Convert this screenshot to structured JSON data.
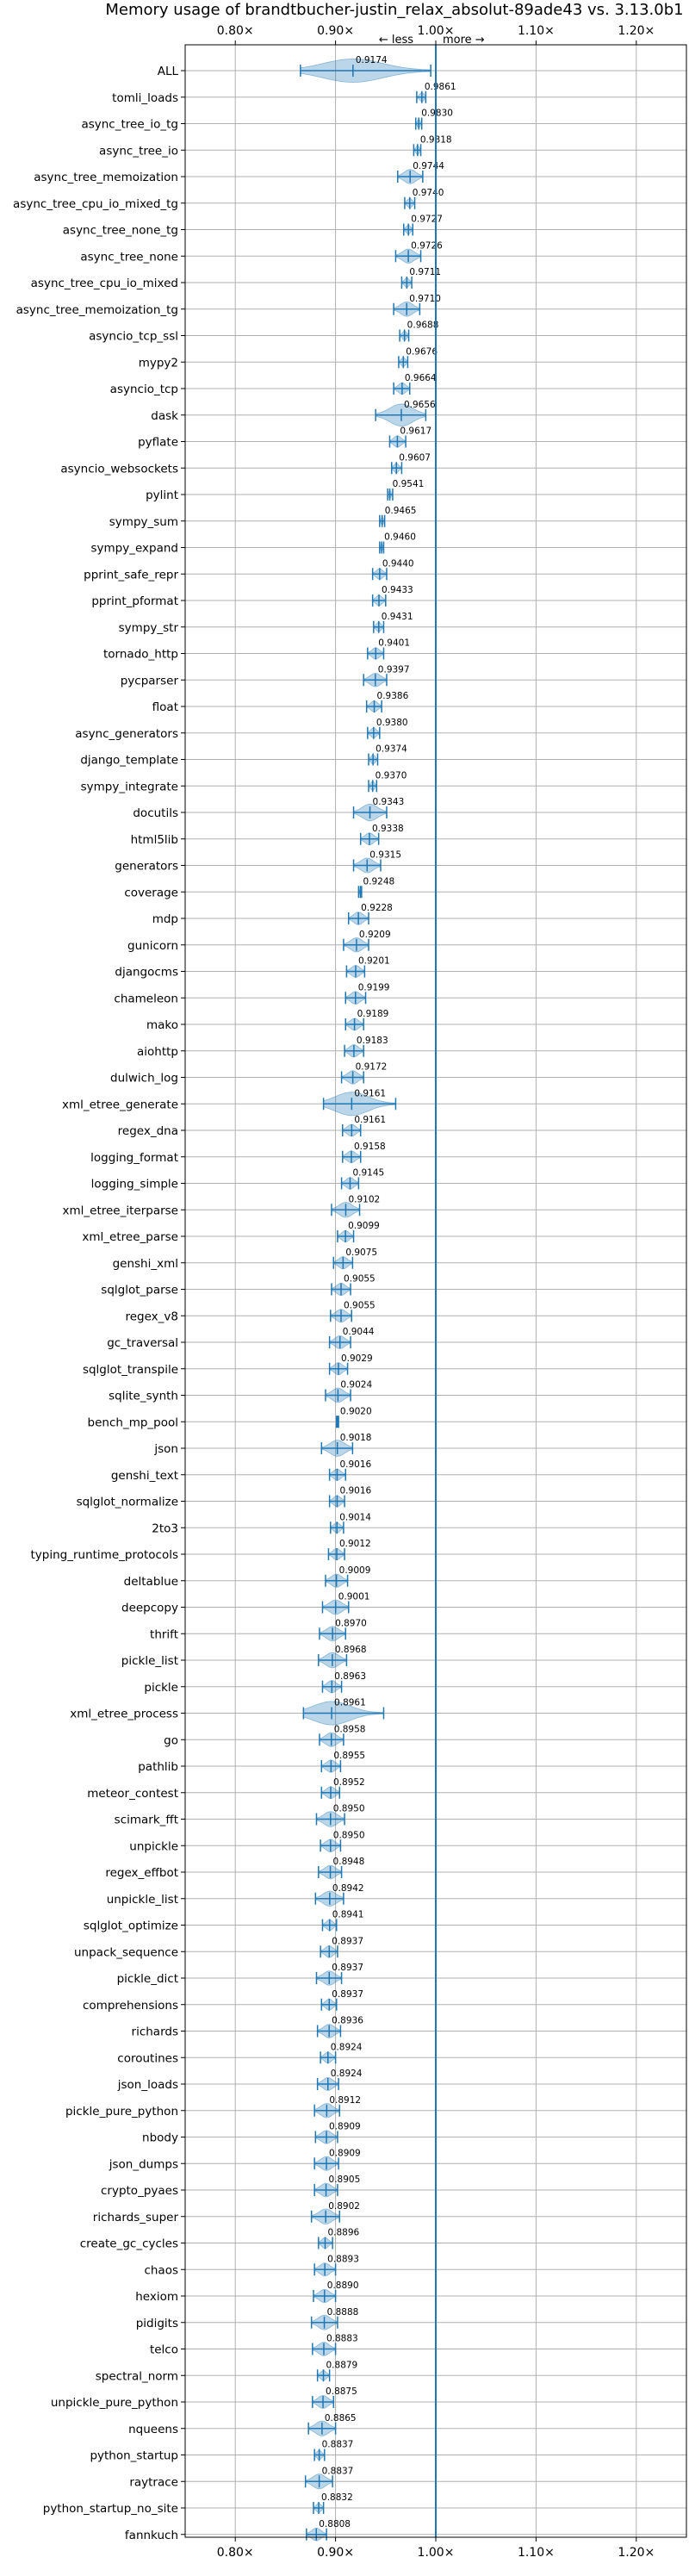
{
  "chart_data": {
    "type": "violin",
    "title": "Memory usage of brandtbucher-justin_relax_absolut-89ade43 vs. 3.13.0b1",
    "annotation_less": "← less",
    "annotation_more": "more →",
    "xlim": [
      0.75,
      1.25
    ],
    "reference_line": 1.0,
    "x_ticks": [
      {
        "value": 0.8,
        "label": "0.80×"
      },
      {
        "value": 0.9,
        "label": "0.90×"
      },
      {
        "value": 1.0,
        "label": "1.00×"
      },
      {
        "value": 1.1,
        "label": "1.10×"
      },
      {
        "value": 1.2,
        "label": "1.20×"
      }
    ],
    "grid": true,
    "colors": {
      "violin": "#1f77b4",
      "reference": "#1f77b4",
      "grid": "#b0b0b0"
    },
    "benchmarks": [
      {
        "name": "ALL",
        "value": 0.9174,
        "label": "0.9174",
        "min": 0.865,
        "max": 0.995
      },
      {
        "name": "tomli_loads",
        "value": 0.9861,
        "label": "0.9861",
        "min": 0.981,
        "max": 0.99
      },
      {
        "name": "async_tree_io_tg",
        "value": 0.983,
        "label": "0.9830",
        "min": 0.98,
        "max": 0.986
      },
      {
        "name": "async_tree_io",
        "value": 0.9818,
        "label": "0.9818",
        "min": 0.978,
        "max": 0.985
      },
      {
        "name": "async_tree_memoization",
        "value": 0.9744,
        "label": "0.9744",
        "min": 0.962,
        "max": 0.987
      },
      {
        "name": "async_tree_cpu_io_mixed_tg",
        "value": 0.974,
        "label": "0.9740",
        "min": 0.969,
        "max": 0.979
      },
      {
        "name": "async_tree_none_tg",
        "value": 0.9727,
        "label": "0.9727",
        "min": 0.968,
        "max": 0.977
      },
      {
        "name": "async_tree_none",
        "value": 0.9726,
        "label": "0.9726",
        "min": 0.96,
        "max": 0.985
      },
      {
        "name": "async_tree_cpu_io_mixed",
        "value": 0.9711,
        "label": "0.9711",
        "min": 0.966,
        "max": 0.976
      },
      {
        "name": "async_tree_memoization_tg",
        "value": 0.971,
        "label": "0.9710",
        "min": 0.958,
        "max": 0.984
      },
      {
        "name": "asyncio_tcp_ssl",
        "value": 0.9688,
        "label": "0.9688",
        "min": 0.964,
        "max": 0.973
      },
      {
        "name": "mypy2",
        "value": 0.9676,
        "label": "0.9676",
        "min": 0.963,
        "max": 0.972
      },
      {
        "name": "asyncio_tcp",
        "value": 0.9664,
        "label": "0.9664",
        "min": 0.958,
        "max": 0.974
      },
      {
        "name": "dask",
        "value": 0.9656,
        "label": "0.9656",
        "min": 0.94,
        "max": 0.99
      },
      {
        "name": "pyflate",
        "value": 0.9617,
        "label": "0.9617",
        "min": 0.954,
        "max": 0.97
      },
      {
        "name": "asyncio_websockets",
        "value": 0.9607,
        "label": "0.9607",
        "min": 0.956,
        "max": 0.966
      },
      {
        "name": "pylint",
        "value": 0.9541,
        "label": "0.9541",
        "min": 0.952,
        "max": 0.957
      },
      {
        "name": "sympy_sum",
        "value": 0.9465,
        "label": "0.9465",
        "min": 0.944,
        "max": 0.949
      },
      {
        "name": "sympy_expand",
        "value": 0.946,
        "label": "0.9460",
        "min": 0.944,
        "max": 0.948
      },
      {
        "name": "pprint_safe_repr",
        "value": 0.944,
        "label": "0.9440",
        "min": 0.937,
        "max": 0.951
      },
      {
        "name": "pprint_pformat",
        "value": 0.9433,
        "label": "0.9433",
        "min": 0.937,
        "max": 0.95
      },
      {
        "name": "sympy_str",
        "value": 0.9431,
        "label": "0.9431",
        "min": 0.938,
        "max": 0.948
      },
      {
        "name": "tornado_http",
        "value": 0.9401,
        "label": "0.9401",
        "min": 0.932,
        "max": 0.948
      },
      {
        "name": "pycparser",
        "value": 0.9397,
        "label": "0.9397",
        "min": 0.928,
        "max": 0.951
      },
      {
        "name": "float",
        "value": 0.9386,
        "label": "0.9386",
        "min": 0.931,
        "max": 0.946
      },
      {
        "name": "async_generators",
        "value": 0.938,
        "label": "0.9380",
        "min": 0.932,
        "max": 0.944
      },
      {
        "name": "django_template",
        "value": 0.9374,
        "label": "0.9374",
        "min": 0.933,
        "max": 0.942
      },
      {
        "name": "sympy_integrate",
        "value": 0.937,
        "label": "0.9370",
        "min": 0.933,
        "max": 0.941
      },
      {
        "name": "docutils",
        "value": 0.9343,
        "label": "0.9343",
        "min": 0.918,
        "max": 0.951
      },
      {
        "name": "html5lib",
        "value": 0.9338,
        "label": "0.9338",
        "min": 0.925,
        "max": 0.943
      },
      {
        "name": "generators",
        "value": 0.9315,
        "label": "0.9315",
        "min": 0.918,
        "max": 0.945
      },
      {
        "name": "coverage",
        "value": 0.9248,
        "label": "0.9248",
        "min": 0.923,
        "max": 0.926
      },
      {
        "name": "mdp",
        "value": 0.9228,
        "label": "0.9228",
        "min": 0.913,
        "max": 0.933
      },
      {
        "name": "gunicorn",
        "value": 0.9209,
        "label": "0.9209",
        "min": 0.908,
        "max": 0.933
      },
      {
        "name": "djangocms",
        "value": 0.9201,
        "label": "0.9201",
        "min": 0.911,
        "max": 0.929
      },
      {
        "name": "chameleon",
        "value": 0.9199,
        "label": "0.9199",
        "min": 0.91,
        "max": 0.93
      },
      {
        "name": "mako",
        "value": 0.9189,
        "label": "0.9189",
        "min": 0.91,
        "max": 0.928
      },
      {
        "name": "aiohttp",
        "value": 0.9183,
        "label": "0.9183",
        "min": 0.909,
        "max": 0.928
      },
      {
        "name": "dulwich_log",
        "value": 0.9172,
        "label": "0.9172",
        "min": 0.906,
        "max": 0.928
      },
      {
        "name": "xml_etree_generate",
        "value": 0.9161,
        "label": "0.9161",
        "min": 0.888,
        "max": 0.96
      },
      {
        "name": "regex_dna",
        "value": 0.9161,
        "label": "0.9161",
        "min": 0.907,
        "max": 0.925
      },
      {
        "name": "logging_format",
        "value": 0.9158,
        "label": "0.9158",
        "min": 0.907,
        "max": 0.925
      },
      {
        "name": "logging_simple",
        "value": 0.9145,
        "label": "0.9145",
        "min": 0.906,
        "max": 0.923
      },
      {
        "name": "xml_etree_iterparse",
        "value": 0.9102,
        "label": "0.9102",
        "min": 0.896,
        "max": 0.924
      },
      {
        "name": "xml_etree_parse",
        "value": 0.9099,
        "label": "0.9099",
        "min": 0.902,
        "max": 0.918
      },
      {
        "name": "genshi_xml",
        "value": 0.9075,
        "label": "0.9075",
        "min": 0.898,
        "max": 0.917
      },
      {
        "name": "sqlglot_parse",
        "value": 0.9055,
        "label": "0.9055",
        "min": 0.896,
        "max": 0.915
      },
      {
        "name": "regex_v8",
        "value": 0.9055,
        "label": "0.9055",
        "min": 0.895,
        "max": 0.916
      },
      {
        "name": "gc_traversal",
        "value": 0.9044,
        "label": "0.9044",
        "min": 0.894,
        "max": 0.915
      },
      {
        "name": "sqlglot_transpile",
        "value": 0.9029,
        "label": "0.9029",
        "min": 0.894,
        "max": 0.912
      },
      {
        "name": "sqlite_synth",
        "value": 0.9024,
        "label": "0.9024",
        "min": 0.89,
        "max": 0.915
      },
      {
        "name": "bench_mp_pool",
        "value": 0.902,
        "label": "0.9020",
        "min": 0.901,
        "max": 0.903
      },
      {
        "name": "json",
        "value": 0.9018,
        "label": "0.9018",
        "min": 0.886,
        "max": 0.917
      },
      {
        "name": "genshi_text",
        "value": 0.9016,
        "label": "0.9016",
        "min": 0.894,
        "max": 0.91
      },
      {
        "name": "sqlglot_normalize",
        "value": 0.9016,
        "label": "0.9016",
        "min": 0.894,
        "max": 0.909
      },
      {
        "name": "2to3",
        "value": 0.9014,
        "label": "0.9014",
        "min": 0.895,
        "max": 0.908
      },
      {
        "name": "typing_runtime_protocols",
        "value": 0.9012,
        "label": "0.9012",
        "min": 0.893,
        "max": 0.909
      },
      {
        "name": "deltablue",
        "value": 0.9009,
        "label": "0.9009",
        "min": 0.89,
        "max": 0.912
      },
      {
        "name": "deepcopy",
        "value": 0.9001,
        "label": "0.9001",
        "min": 0.887,
        "max": 0.913
      },
      {
        "name": "thrift",
        "value": 0.897,
        "label": "0.8970",
        "min": 0.884,
        "max": 0.91
      },
      {
        "name": "pickle_list",
        "value": 0.8968,
        "label": "0.8968",
        "min": 0.883,
        "max": 0.911
      },
      {
        "name": "pickle",
        "value": 0.8963,
        "label": "0.8963",
        "min": 0.887,
        "max": 0.906
      },
      {
        "name": "xml_etree_process",
        "value": 0.8961,
        "label": "0.8961",
        "min": 0.868,
        "max": 0.948
      },
      {
        "name": "go",
        "value": 0.8958,
        "label": "0.8958",
        "min": 0.884,
        "max": 0.908
      },
      {
        "name": "pathlib",
        "value": 0.8955,
        "label": "0.8955",
        "min": 0.886,
        "max": 0.905
      },
      {
        "name": "meteor_contest",
        "value": 0.8952,
        "label": "0.8952",
        "min": 0.886,
        "max": 0.904
      },
      {
        "name": "scimark_fft",
        "value": 0.895,
        "label": "0.8950",
        "min": 0.881,
        "max": 0.909
      },
      {
        "name": "unpickle",
        "value": 0.895,
        "label": "0.8950",
        "min": 0.885,
        "max": 0.905
      },
      {
        "name": "regex_effbot",
        "value": 0.8948,
        "label": "0.8948",
        "min": 0.883,
        "max": 0.906
      },
      {
        "name": "unpickle_list",
        "value": 0.8942,
        "label": "0.8942",
        "min": 0.88,
        "max": 0.908
      },
      {
        "name": "sqlglot_optimize",
        "value": 0.8941,
        "label": "0.8941",
        "min": 0.887,
        "max": 0.901
      },
      {
        "name": "unpack_sequence",
        "value": 0.8937,
        "label": "0.8937",
        "min": 0.885,
        "max": 0.902
      },
      {
        "name": "pickle_dict",
        "value": 0.8937,
        "label": "0.8937",
        "min": 0.881,
        "max": 0.906
      },
      {
        "name": "comprehensions",
        "value": 0.8937,
        "label": "0.8937",
        "min": 0.886,
        "max": 0.901
      },
      {
        "name": "richards",
        "value": 0.8936,
        "label": "0.8936",
        "min": 0.882,
        "max": 0.905
      },
      {
        "name": "coroutines",
        "value": 0.8924,
        "label": "0.8924",
        "min": 0.885,
        "max": 0.9
      },
      {
        "name": "json_loads",
        "value": 0.8924,
        "label": "0.8924",
        "min": 0.882,
        "max": 0.903
      },
      {
        "name": "pickle_pure_python",
        "value": 0.8912,
        "label": "0.8912",
        "min": 0.879,
        "max": 0.904
      },
      {
        "name": "nbody",
        "value": 0.8909,
        "label": "0.8909",
        "min": 0.88,
        "max": 0.902
      },
      {
        "name": "json_dumps",
        "value": 0.8909,
        "label": "0.8909",
        "min": 0.879,
        "max": 0.903
      },
      {
        "name": "crypto_pyaes",
        "value": 0.8905,
        "label": "0.8905",
        "min": 0.879,
        "max": 0.902
      },
      {
        "name": "richards_super",
        "value": 0.8902,
        "label": "0.8902",
        "min": 0.876,
        "max": 0.904
      },
      {
        "name": "create_gc_cycles",
        "value": 0.8896,
        "label": "0.8896",
        "min": 0.883,
        "max": 0.897
      },
      {
        "name": "chaos",
        "value": 0.8893,
        "label": "0.8893",
        "min": 0.879,
        "max": 0.9
      },
      {
        "name": "hexiom",
        "value": 0.889,
        "label": "0.8890",
        "min": 0.878,
        "max": 0.9
      },
      {
        "name": "pidigits",
        "value": 0.8888,
        "label": "0.8888",
        "min": 0.876,
        "max": 0.902
      },
      {
        "name": "telco",
        "value": 0.8883,
        "label": "0.8883",
        "min": 0.877,
        "max": 0.9
      },
      {
        "name": "spectral_norm",
        "value": 0.8879,
        "label": "0.8879",
        "min": 0.882,
        "max": 0.894
      },
      {
        "name": "unpickle_pure_python",
        "value": 0.8875,
        "label": "0.8875",
        "min": 0.877,
        "max": 0.898
      },
      {
        "name": "nqueens",
        "value": 0.8865,
        "label": "0.8865",
        "min": 0.873,
        "max": 0.9
      },
      {
        "name": "python_startup",
        "value": 0.8837,
        "label": "0.8837",
        "min": 0.879,
        "max": 0.889
      },
      {
        "name": "raytrace",
        "value": 0.8837,
        "label": "0.8837",
        "min": 0.87,
        "max": 0.897
      },
      {
        "name": "python_startup_no_site",
        "value": 0.8832,
        "label": "0.8832",
        "min": 0.878,
        "max": 0.888
      },
      {
        "name": "fannkuch",
        "value": 0.8808,
        "label": "0.8808",
        "min": 0.871,
        "max": 0.891
      }
    ]
  }
}
